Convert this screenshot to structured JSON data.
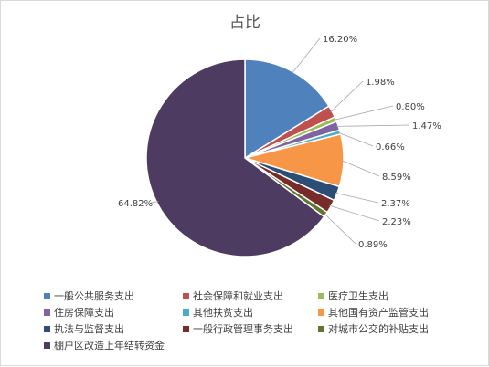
{
  "chart_data": {
    "type": "pie",
    "title": "占比",
    "slices": [
      {
        "name": "一般公共服务支出",
        "value": 16.2,
        "label": "16.20%",
        "color": "#4f81bd"
      },
      {
        "name": "社会保障和就业支出",
        "value": 1.98,
        "label": "1.98%",
        "color": "#c0504d"
      },
      {
        "name": "医疗卫生支出",
        "value": 0.8,
        "label": "0.80%",
        "color": "#9bbb59"
      },
      {
        "name": "住房保障支出",
        "value": 1.47,
        "label": "1.47%",
        "color": "#8064a2"
      },
      {
        "name": "其他扶贫支出",
        "value": 0.66,
        "label": "0.66%",
        "color": "#4bacc6"
      },
      {
        "name": "其他国有资产监管支出",
        "value": 8.59,
        "label": "8.59%",
        "color": "#f79646"
      },
      {
        "name": "执法与监督支出",
        "value": 2.37,
        "label": "2.37%",
        "color": "#2c4d75"
      },
      {
        "name": "一般行政管理事务支出",
        "value": 2.23,
        "label": "2.23%",
        "color": "#772c2a"
      },
      {
        "name": "对城市公交的补贴支出",
        "value": 0.89,
        "label": "0.89%",
        "color": "#5f7530"
      },
      {
        "name": "棚户区改造上年结转资金",
        "value": 64.82,
        "label": "64.82%",
        "color": "#4d3b62"
      }
    ],
    "legend_position": "bottom"
  }
}
